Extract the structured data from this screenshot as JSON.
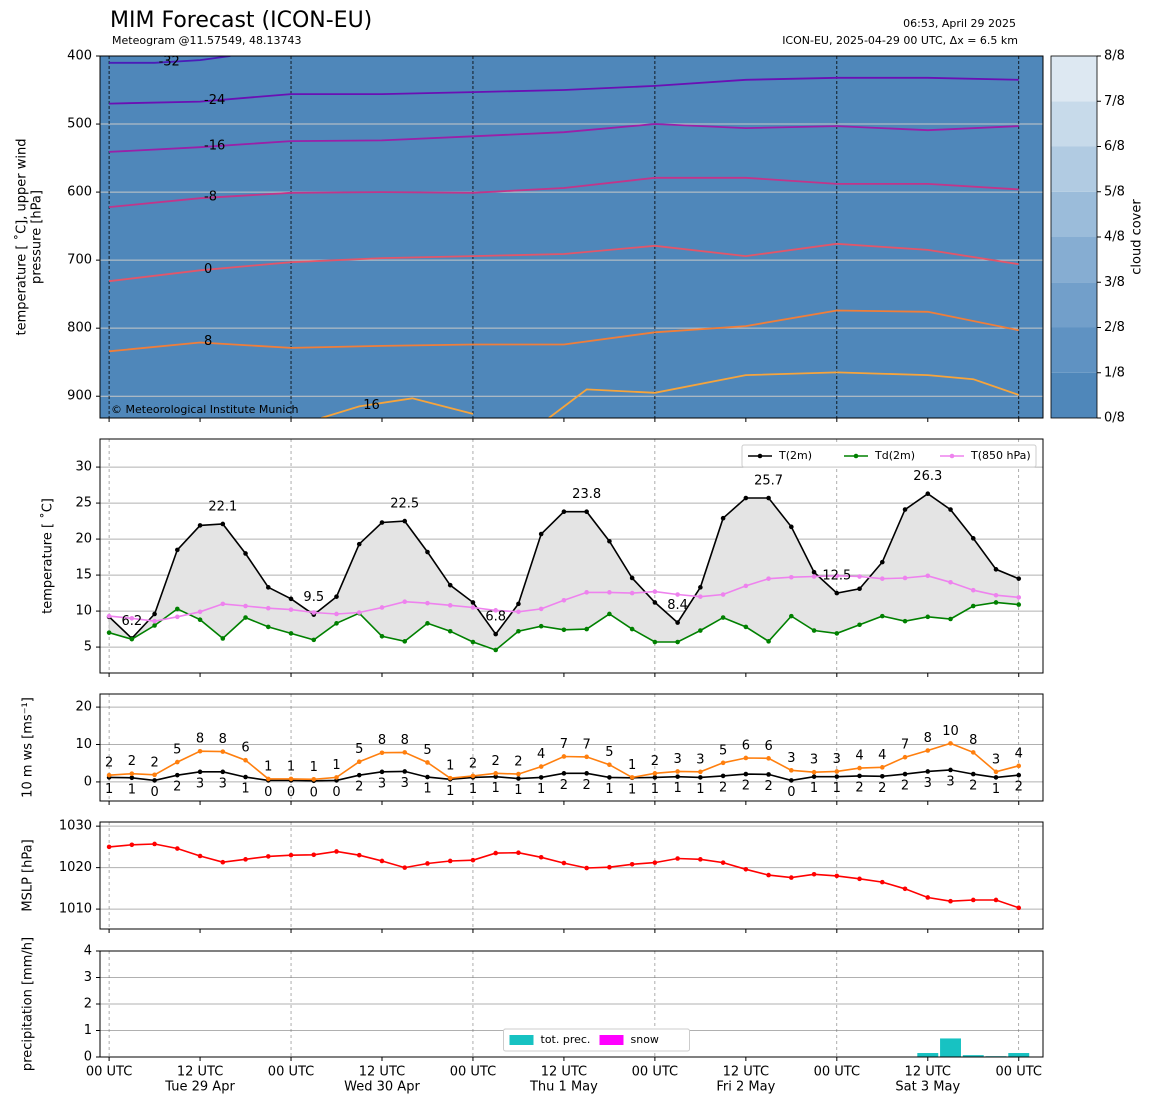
{
  "header": {
    "title": "MIM Forecast (ICON-EU)",
    "subtitle": "Meteogram @11.57549, 48.13743",
    "issued": "06:53, April 29 2025",
    "run": "ICON-EU, 2025-04-29 00 UTC, Δx = 6.5 km"
  },
  "time": {
    "x": [
      0,
      3,
      6,
      9,
      12,
      15,
      18,
      21,
      24,
      27,
      30,
      33,
      36,
      39,
      42,
      45,
      48,
      51,
      54,
      57,
      60,
      63,
      66,
      69,
      72,
      75,
      78,
      81,
      84,
      87,
      90,
      93,
      96,
      99,
      102,
      105,
      108,
      111,
      114,
      117,
      120
    ],
    "xlim": [
      -1.2,
      123.2
    ],
    "xticks": [
      {
        "value": 0,
        "label": "00 UTC"
      },
      {
        "value": 12,
        "label": "12 UTC"
      },
      {
        "value": 24,
        "label": "00 UTC"
      },
      {
        "value": 36,
        "label": "12 UTC"
      },
      {
        "value": 48,
        "label": "00 UTC"
      },
      {
        "value": 60,
        "label": "12 UTC"
      },
      {
        "value": 72,
        "label": "00 UTC"
      },
      {
        "value": 84,
        "label": "12 UTC"
      },
      {
        "value": 96,
        "label": "00 UTC"
      },
      {
        "value": 108,
        "label": "12 UTC"
      },
      {
        "value": 120,
        "label": "00 UTC"
      }
    ],
    "xdays": [
      {
        "value": 12,
        "label": "Tue 29 Apr"
      },
      {
        "value": 36,
        "label": "Wed 30 Apr"
      },
      {
        "value": 60,
        "label": "Thu 1 May"
      },
      {
        "value": 84,
        "label": "Fri 2 May"
      },
      {
        "value": 108,
        "label": "Sat 3 May"
      }
    ]
  },
  "chart_data": [
    {
      "type": "contour",
      "ylabel": [
        "temperature [ ˚C], upper wind",
        "pressure [hPa]"
      ],
      "ylim": [
        932,
        400
      ],
      "yticks": [
        400,
        500,
        600,
        700,
        800,
        900
      ],
      "grid": true,
      "copyright": "© Meteorological Institute Munich",
      "colorbar": {
        "label": "cloud cover",
        "colors": [
          "#4f87ba",
          "#5f92c2",
          "#729fca",
          "#86add2",
          "#9bbcda",
          "#b1cbe2",
          "#c7daea",
          "#dde8f2",
          "#f1f6fa"
        ],
        "ticks": [
          {
            "value": 0,
            "label": "0/8"
          },
          {
            "value": 1,
            "label": "1/8"
          },
          {
            "value": 2,
            "label": "2/8"
          },
          {
            "value": 3,
            "label": "3/8"
          },
          {
            "value": 4,
            "label": "4/8"
          },
          {
            "value": 5,
            "label": "5/8"
          },
          {
            "value": 6,
            "label": "6/8"
          },
          {
            "value": 7,
            "label": "7/8"
          },
          {
            "value": 8,
            "label": "8/8"
          }
        ],
        "lim": [
          0,
          8
        ]
      },
      "series": [
        {
          "level": -32,
          "color": "#4a1cb8",
          "x": [
            0,
            6,
            12,
            16
          ],
          "values": [
            410,
            410,
            406,
            400
          ]
        },
        {
          "level": -24,
          "color": "#6a10b4",
          "x": [
            0,
            12,
            24,
            36,
            48,
            60,
            72,
            84,
            96,
            108,
            120
          ],
          "values": [
            470,
            467,
            456,
            456,
            453,
            450,
            444,
            435,
            432,
            432,
            435
          ]
        },
        {
          "level": -16,
          "color": "#9a20a8",
          "x": [
            0,
            12,
            24,
            36,
            48,
            60,
            72,
            84,
            96,
            108,
            120
          ],
          "values": [
            541,
            534,
            525,
            524,
            518,
            512,
            500,
            506,
            503,
            509,
            503
          ]
        },
        {
          "level": -8,
          "color": "#c2358a",
          "x": [
            0,
            12,
            24,
            36,
            48,
            60,
            72,
            84,
            96,
            108,
            120
          ],
          "values": [
            622,
            609,
            601,
            600,
            601,
            594,
            579,
            579,
            588,
            588,
            596
          ]
        },
        {
          "level": 0,
          "color": "#e2566a",
          "x": [
            0,
            12,
            24,
            36,
            48,
            60,
            72,
            84,
            96,
            108,
            120
          ],
          "values": [
            731,
            715,
            703,
            697,
            694,
            691,
            679,
            694,
            676,
            685,
            706
          ]
        },
        {
          "level": 8,
          "color": "#f07e3a",
          "x": [
            0,
            12,
            24,
            36,
            48,
            60,
            72,
            84,
            96,
            108,
            120
          ],
          "values": [
            834,
            821,
            829,
            826,
            824,
            824,
            806,
            797,
            774,
            776,
            803
          ]
        },
        {
          "level": 16,
          "color": "#f6a43c",
          "x": [
            28,
            33,
            40,
            48,
            53,
            58,
            63,
            72,
            84,
            96,
            108,
            114,
            120
          ],
          "values": [
            932,
            915,
            903,
            926,
            null,
            932,
            890,
            895,
            869,
            865,
            869,
            875,
            898
          ]
        }
      ]
    },
    {
      "type": "line",
      "ylabel": [
        "temperature [ ˚C]"
      ],
      "ylim": [
        1.4,
        33.9
      ],
      "yticks": [
        5,
        10,
        15,
        20,
        25,
        30
      ],
      "grid": true,
      "legend": "upper right",
      "fill_between": [
        0,
        1
      ],
      "series": [
        {
          "name": "T(2m)",
          "color": "#000000",
          "values": [
            9.2,
            6.2,
            9.6,
            18.5,
            21.9,
            22.1,
            18.0,
            13.3,
            11.7,
            9.5,
            12.0,
            19.3,
            22.3,
            22.5,
            18.2,
            13.6,
            11.2,
            6.8,
            11.0,
            20.7,
            23.8,
            23.8,
            19.7,
            14.6,
            11.2,
            8.4,
            13.3,
            22.9,
            25.7,
            25.7,
            21.7,
            15.4,
            12.5,
            13.1,
            16.8,
            24.1,
            26.3,
            24.1,
            20.1,
            15.8,
            14.5
          ]
        },
        {
          "name": "Td(2m)",
          "color": "#008000",
          "values": [
            7.0,
            6.1,
            8.0,
            10.3,
            8.8,
            6.2,
            9.1,
            7.8,
            6.9,
            6.0,
            8.3,
            9.7,
            6.5,
            5.8,
            8.3,
            7.2,
            5.7,
            4.6,
            7.2,
            7.9,
            7.4,
            7.5,
            9.6,
            7.5,
            5.7,
            5.7,
            7.3,
            9.1,
            7.8,
            5.8,
            9.3,
            7.3,
            6.9,
            8.1,
            9.3,
            8.6,
            9.2,
            8.9,
            10.7,
            11.2,
            10.9
          ]
        },
        {
          "name": "T(850 hPa)",
          "color": "#ee82ee",
          "values": [
            9.3,
            9.0,
            8.6,
            9.2,
            9.9,
            11.0,
            10.7,
            10.4,
            10.2,
            9.8,
            9.6,
            9.8,
            10.5,
            11.3,
            11.1,
            10.8,
            10.5,
            10.1,
            9.9,
            10.3,
            11.5,
            12.6,
            12.6,
            12.5,
            12.7,
            12.3,
            12.0,
            12.3,
            13.5,
            14.5,
            14.7,
            14.8,
            14.9,
            14.8,
            14.5,
            14.6,
            14.9,
            14.0,
            12.9,
            12.2,
            11.9
          ]
        }
      ],
      "annotations": [
        {
          "x": 15,
          "value": 22.1,
          "color": "#ff0000"
        },
        {
          "x": 39,
          "value": 22.5,
          "color": "#ff0000"
        },
        {
          "x": 63,
          "value": 23.8,
          "color": "#ff0000"
        },
        {
          "x": 87,
          "value": 25.7,
          "color": "#ff0000"
        },
        {
          "x": 108,
          "value": 26.3,
          "color": "#ff0000"
        },
        {
          "x": 3,
          "value": 6.2,
          "color": "#0000ff"
        },
        {
          "x": 27,
          "value": 9.5,
          "color": "#0000ff"
        },
        {
          "x": 51,
          "value": 6.8,
          "color": "#0000ff"
        },
        {
          "x": 75,
          "value": 8.4,
          "color": "#0000ff"
        },
        {
          "x": 96,
          "value": 12.5,
          "color": "#0000ff"
        }
      ]
    },
    {
      "type": "line",
      "ylabel": [
        "10 m ws [ms⁻¹]"
      ],
      "ylim": [
        -5.1,
        23.5
      ],
      "yticks": [
        0,
        10,
        20
      ],
      "grid": true,
      "series": [
        {
          "color": "#000000",
          "values": [
            1.2,
            1.1,
            0.4,
            1.8,
            2.7,
            2.7,
            1.3,
            0.4,
            0.4,
            0.3,
            0.4,
            1.8,
            2.7,
            2.8,
            1.3,
            0.7,
            1.2,
            1.4,
            0.9,
            1.2,
            2.3,
            2.3,
            1.2,
            1.1,
            1.2,
            1.4,
            1.2,
            1.6,
            2.1,
            2.0,
            0.4,
            1.4,
            1.4,
            1.6,
            1.5,
            2.1,
            2.8,
            3.2,
            2.1,
            1.2,
            1.8
          ],
          "value_labels": [
            "1",
            "1",
            "0",
            "2",
            "3",
            "3",
            "1",
            "0",
            "0",
            "0",
            "0",
            "2",
            "3",
            "3",
            "1",
            "1",
            "1",
            "1",
            "1",
            "1",
            "2",
            "2",
            "1",
            "1",
            "1",
            "1",
            "1",
            "2",
            "2",
            "2",
            "0",
            "1",
            "1",
            "2",
            "2",
            "2",
            "3",
            "3",
            "2",
            "1",
            "2"
          ]
        },
        {
          "color": "#ff7f0e",
          "values": [
            1.8,
            2.2,
            1.9,
            5.3,
            8.2,
            8.1,
            5.8,
            0.8,
            0.8,
            0.7,
            1.2,
            5.4,
            7.8,
            7.9,
            5.2,
            1.0,
            1.6,
            2.3,
            2.1,
            4.1,
            6.8,
            6.7,
            4.6,
            1.2,
            2.3,
            2.8,
            2.7,
            5.1,
            6.4,
            6.3,
            3.1,
            2.6,
            2.8,
            3.7,
            3.9,
            6.6,
            8.4,
            10.3,
            7.9,
            2.7,
            4.3
          ],
          "value_labels": [
            "2",
            "2",
            "2",
            "5",
            "8",
            "8",
            "6",
            "1",
            "1",
            "1",
            "1",
            "5",
            "8",
            "8",
            "5",
            "1",
            "2",
            "2",
            "2",
            "4",
            "7",
            "7",
            "5",
            "1",
            "2",
            "3",
            "3",
            "5",
            "6",
            "6",
            "3",
            "3",
            "3",
            "4",
            "4",
            "7",
            "8",
            "10",
            "8",
            "3",
            "4"
          ]
        }
      ]
    },
    {
      "type": "line",
      "ylabel": [
        "MSLP [hPa]"
      ],
      "ylim": [
        1005.2,
        1031
      ],
      "yticks": [
        1010,
        1020,
        1030
      ],
      "grid": true,
      "series": [
        {
          "color": "#ff0000",
          "values": [
            1025.0,
            1025.5,
            1025.7,
            1024.6,
            1022.8,
            1021.3,
            1022.0,
            1022.7,
            1023.0,
            1023.1,
            1023.9,
            1023.0,
            1021.6,
            1020.0,
            1021.0,
            1021.6,
            1021.8,
            1023.5,
            1023.6,
            1022.5,
            1021.1,
            1019.9,
            1020.1,
            1020.8,
            1021.2,
            1022.2,
            1022.0,
            1021.2,
            1019.6,
            1018.2,
            1017.6,
            1018.4,
            1018.0,
            1017.3,
            1016.5,
            1014.9,
            1012.8,
            1011.9,
            1012.2,
            1012.2,
            1010.3
          ]
        }
      ]
    },
    {
      "type": "bar",
      "ylabel": [
        "precipitation [mm/h]"
      ],
      "ylim": [
        0,
        4
      ],
      "yticks": [
        0,
        1,
        2,
        3,
        4
      ],
      "grid": true,
      "legend": "lower center",
      "series": [
        {
          "name": "tot. prec.",
          "color": "#17c2c2",
          "values": [
            0,
            0,
            0,
            0,
            0,
            0,
            0,
            0,
            0,
            0,
            0,
            0,
            0,
            0,
            0,
            0,
            0,
            0,
            0,
            0,
            0,
            0,
            0,
            0,
            0,
            0,
            0,
            0,
            0,
            0,
            0,
            0,
            0,
            0,
            0,
            0,
            0.15,
            0.7,
            0.07,
            0.03,
            0.15
          ]
        },
        {
          "name": "snow",
          "color": "#ff00ff",
          "values": [
            0,
            0,
            0,
            0,
            0,
            0,
            0,
            0,
            0,
            0,
            0,
            0,
            0,
            0,
            0,
            0,
            0,
            0,
            0,
            0,
            0,
            0,
            0,
            0,
            0,
            0,
            0,
            0,
            0,
            0,
            0,
            0,
            0,
            0,
            0,
            0,
            0,
            0,
            0,
            0,
            0
          ]
        }
      ]
    }
  ]
}
